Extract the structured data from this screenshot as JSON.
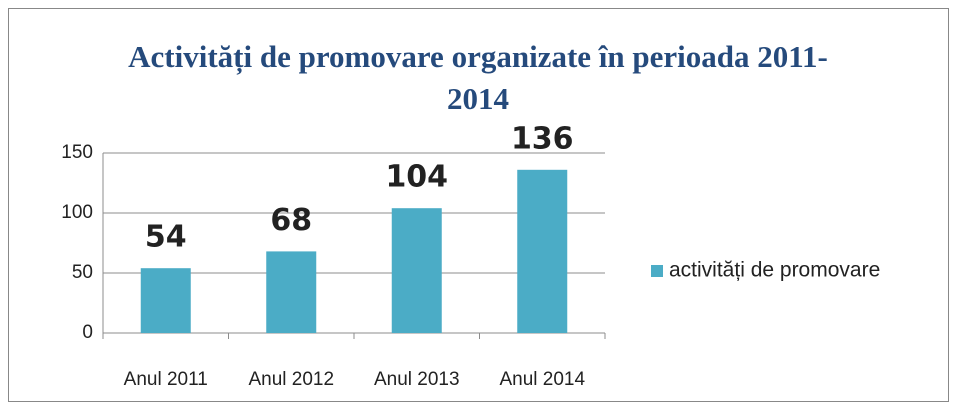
{
  "chart_data": {
    "type": "bar",
    "title": "Activități de promovare organizate în perioada 2011-2014",
    "categories": [
      "Anul 2011",
      "Anul 2012",
      "Anul 2013",
      "Anul 2014"
    ],
    "series": [
      {
        "name": "activități de promovare",
        "color": "#4bacc6",
        "values": [
          54,
          68,
          104,
          136
        ]
      }
    ],
    "ylim": [
      0,
      150
    ],
    "yticks": [
      0,
      50,
      100,
      150
    ],
    "grid": true,
    "legend": "right"
  }
}
